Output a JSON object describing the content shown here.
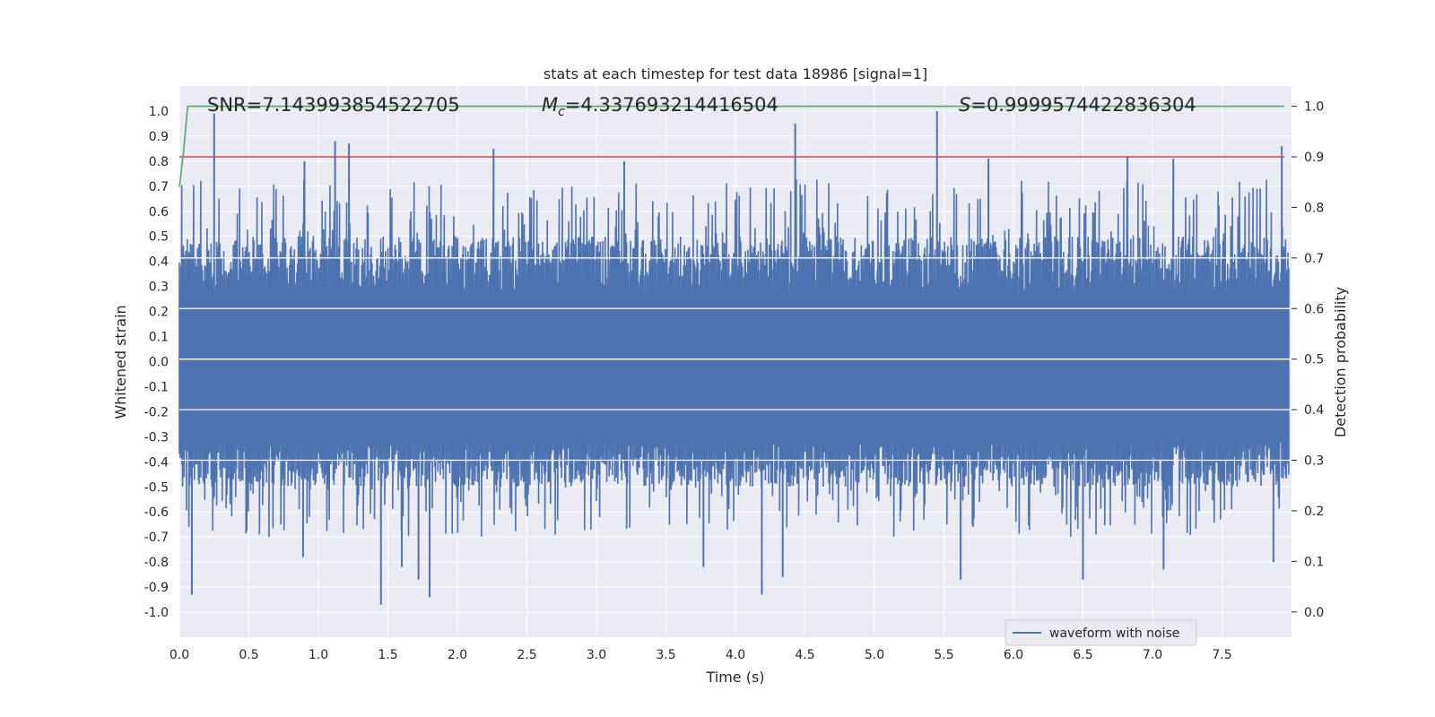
{
  "chart_data": {
    "type": "line",
    "title": "stats at each timestep for test data 18986 [signal=1]",
    "xlabel": "Time (s)",
    "ylabel": "Whitened strain",
    "y2label": "Detection probability",
    "xlim": [
      0.0,
      8.0
    ],
    "ylim": [
      -1.1,
      1.1
    ],
    "y2lim": [
      -0.05,
      1.04
    ],
    "x_ticks": [
      "0.0",
      "0.5",
      "1.0",
      "1.5",
      "2.0",
      "2.5",
      "3.0",
      "3.5",
      "4.0",
      "4.5",
      "5.0",
      "5.5",
      "6.0",
      "6.5",
      "7.0",
      "7.5"
    ],
    "x_tick_values": [
      0.0,
      0.5,
      1.0,
      1.5,
      2.0,
      2.5,
      3.0,
      3.5,
      4.0,
      4.5,
      5.0,
      5.5,
      6.0,
      6.5,
      7.0,
      7.5
    ],
    "y_ticks": [
      "1.0",
      "0.9",
      "0.8",
      "0.7",
      "0.6",
      "0.5",
      "0.4",
      "0.3",
      "0.2",
      "0.1",
      "0.0",
      "-0.1",
      "-0.2",
      "-0.3",
      "-0.4",
      "-0.5",
      "-0.6",
      "-0.7",
      "-0.8",
      "-0.9",
      "-1.0"
    ],
    "y_tick_values": [
      1.0,
      0.9,
      0.8,
      0.7,
      0.6,
      0.5,
      0.4,
      0.3,
      0.2,
      0.1,
      0.0,
      -0.1,
      -0.2,
      -0.3,
      -0.4,
      -0.5,
      -0.6,
      -0.7,
      -0.8,
      -0.9,
      -1.0
    ],
    "y2_ticks": [
      "1.0",
      "0.9",
      "0.8",
      "0.7",
      "0.6",
      "0.5",
      "0.4",
      "0.3",
      "0.2",
      "0.1",
      "0.0"
    ],
    "y2_tick_values": [
      1.0,
      0.9,
      0.8,
      0.7,
      0.6,
      0.5,
      0.4,
      0.3,
      0.2,
      0.1,
      0.0
    ],
    "annotations": {
      "snr": "SNR=7.143993854522705",
      "mc_symbol": "M",
      "mc_sub": "c",
      "mc_value": "=4.337693214416504",
      "s_symbol": "S",
      "s_value": "=0.9999574422836304"
    },
    "series": [
      {
        "name": "waveform with noise",
        "color": "#4c72b0",
        "axis": "left",
        "peaks_positive": [
          [
            0.25,
            0.99
          ],
          [
            0.9,
            0.8
          ],
          [
            1.12,
            0.88
          ],
          [
            1.22,
            0.87
          ],
          [
            2.26,
            0.85
          ],
          [
            3.2,
            0.8
          ],
          [
            4.43,
            0.95
          ],
          [
            5.45,
            1.0
          ],
          [
            5.82,
            0.81
          ],
          [
            6.82,
            0.82
          ],
          [
            7.15,
            0.81
          ],
          [
            7.93,
            0.86
          ]
        ],
        "peaks_negative": [
          [
            0.09,
            -0.93
          ],
          [
            0.89,
            -0.78
          ],
          [
            1.45,
            -0.97
          ],
          [
            1.6,
            -0.82
          ],
          [
            1.72,
            -0.87
          ],
          [
            1.8,
            -0.94
          ],
          [
            3.77,
            -0.82
          ],
          [
            4.19,
            -0.93
          ],
          [
            4.34,
            -0.86
          ],
          [
            5.62,
            -0.87
          ],
          [
            6.5,
            -0.87
          ],
          [
            7.08,
            -0.83
          ],
          [
            7.87,
            -0.8
          ]
        ]
      },
      {
        "name": "",
        "color": "#c44e52",
        "axis": "right",
        "points": [
          [
            0.0,
            0.9
          ],
          [
            7.95,
            0.9
          ]
        ]
      },
      {
        "name": "",
        "color": "#55a868",
        "axis": "right",
        "points": [
          [
            0.0,
            0.84
          ],
          [
            0.03,
            0.91
          ],
          [
            0.06,
            1.0
          ],
          [
            7.95,
            1.0
          ]
        ]
      }
    ],
    "legend": {
      "position": "lower-right",
      "entries": [
        "waveform with noise"
      ]
    },
    "background_color": "#eaeaf2",
    "grid": true
  }
}
